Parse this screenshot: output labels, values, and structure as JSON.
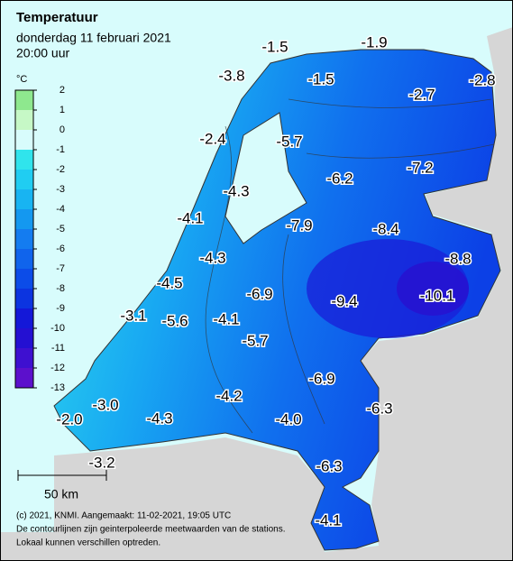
{
  "header": {
    "title": "Temperatuur",
    "date": "donderdag 11 februari 2021",
    "time": "20:00 uur"
  },
  "legend": {
    "unit": "°C",
    "ticks": [
      2,
      1,
      0,
      -1,
      -2,
      -3,
      -4,
      -5,
      -6,
      -7,
      -8,
      -9,
      -10,
      -11,
      -12,
      -13
    ],
    "colors": [
      "#8ee88e",
      "#c6f8c6",
      "#d8fcfc",
      "#30e4ec",
      "#20cdf2",
      "#18b4f2",
      "#1498f0",
      "#147cf0",
      "#1064ec",
      "#0c4ce8",
      "#0c34e0",
      "#1418d8",
      "#2410d2",
      "#3e10d0",
      "#5c10cc"
    ]
  },
  "stations": [
    "-1.5",
    "-1.9",
    "-3.8",
    "-1.5",
    "-2.7",
    "-2.8",
    "-2.4",
    "-5.7",
    "-6.2",
    "-7.2",
    "-4.3",
    "-4.1",
    "-7.9",
    "-8.4",
    "-8.8",
    "-4.3",
    "-4.5",
    "-6.9",
    "-9.4",
    "-10.1",
    "-3.1",
    "-5.6",
    "-4.1",
    "-5.7",
    "-6.9",
    "-3.0",
    "-4.2",
    "-6.3",
    "-2.0",
    "-4.3",
    "-4.0",
    "-3.2",
    "-6.3",
    "-4.1"
  ],
  "scale": "50 km",
  "footer": [
    "(c) 2021, KNMI. Aangemaakt: 11-02-2021, 19:05 UTC",
    "De contourlijnen zijn geinterpoleerde meetwaarden van de stations.",
    "Lokaal kunnen verschillen optreden."
  ]
}
